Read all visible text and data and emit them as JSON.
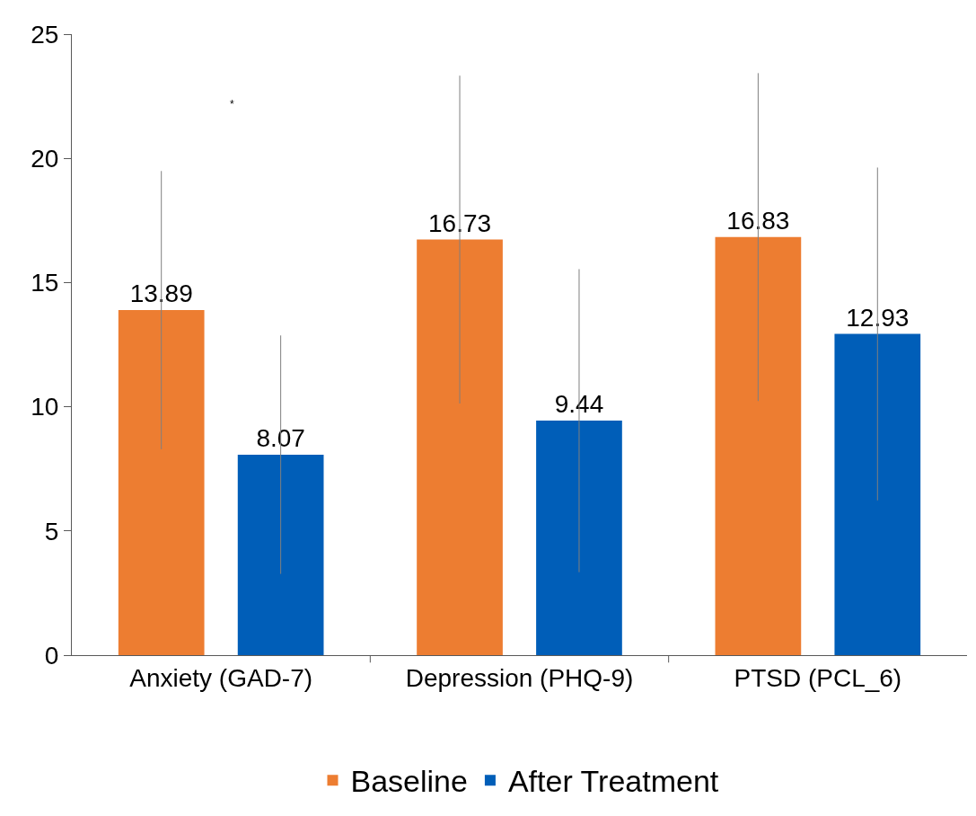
{
  "chart_data": {
    "type": "bar",
    "categories": [
      "Anxiety (GAD-7)",
      "Depression (PHQ-9)",
      "PTSD (PCL_6)"
    ],
    "series": [
      {
        "name": "Baseline",
        "color": "#ed7d31",
        "values": [
          13.89,
          16.73,
          16.83
        ],
        "errors": [
          5.6,
          6.6,
          6.6
        ]
      },
      {
        "name": "After Treatment",
        "color": "#005eb8",
        "values": [
          8.07,
          9.44,
          12.93
        ],
        "errors": [
          4.8,
          6.1,
          6.7
        ]
      }
    ],
    "data_labels": true,
    "ylim": [
      0,
      25
    ],
    "yticks": [
      0,
      5,
      10,
      15,
      20,
      25
    ],
    "annotations": [
      "*"
    ],
    "legend": "bottom"
  }
}
